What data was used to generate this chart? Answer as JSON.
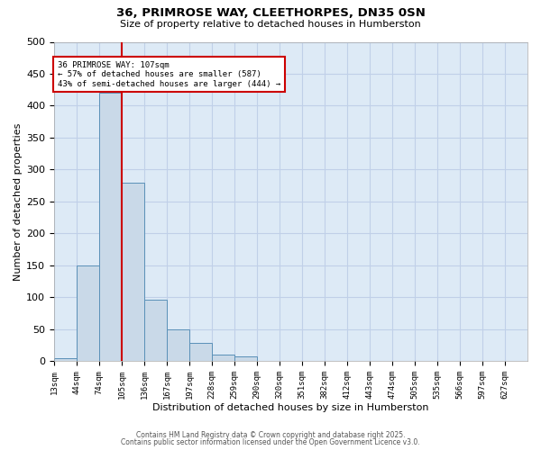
{
  "title_line1": "36, PRIMROSE WAY, CLEETHORPES, DN35 0SN",
  "title_line2": "Size of property relative to detached houses in Humberston",
  "xlabel": "Distribution of detached houses by size in Humberston",
  "ylabel": "Number of detached properties",
  "bin_labels": [
    "13sqm",
    "44sqm",
    "74sqm",
    "105sqm",
    "136sqm",
    "167sqm",
    "197sqm",
    "228sqm",
    "259sqm",
    "290sqm",
    "320sqm",
    "351sqm",
    "382sqm",
    "412sqm",
    "443sqm",
    "474sqm",
    "505sqm",
    "535sqm",
    "566sqm",
    "597sqm",
    "627sqm"
  ],
  "bar_values": [
    5,
    150,
    420,
    280,
    97,
    50,
    28,
    10,
    8,
    1,
    0,
    1,
    0,
    0,
    0,
    0,
    0,
    0,
    0,
    0,
    0
  ],
  "bar_color": "#c9d9e8",
  "bar_edge_color": "#5a90b8",
  "grid_color": "#c0d0e8",
  "background_color": "#ddeaf6",
  "vline_x": 3,
  "vline_color": "#cc0000",
  "annotation_text": "36 PRIMROSE WAY: 107sqm\n← 57% of detached houses are smaller (587)\n43% of semi-detached houses are larger (444) →",
  "annotation_box_color": "#ffffff",
  "annotation_box_edge": "#cc0000",
  "ylim": [
    0,
    500
  ],
  "yticks": [
    0,
    50,
    100,
    150,
    200,
    250,
    300,
    350,
    400,
    450,
    500
  ],
  "footer_line1": "Contains HM Land Registry data © Crown copyright and database right 2025.",
  "footer_line2": "Contains public sector information licensed under the Open Government Licence v3.0."
}
